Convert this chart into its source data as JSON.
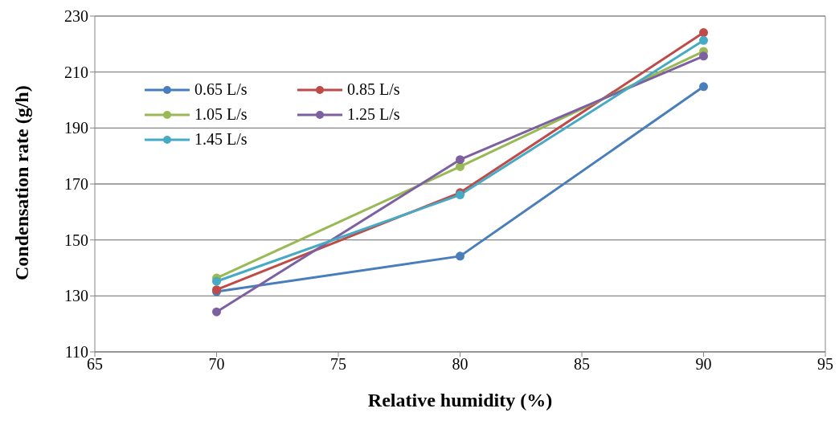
{
  "chart_data": {
    "type": "line",
    "xlabel": "Relative humidity (%)",
    "ylabel": "Condensation rate (g/h)",
    "x": [
      70,
      80,
      90
    ],
    "series": [
      {
        "name": "0.65 L/s",
        "color": "#4a7ebb",
        "values": [
          131.5,
          144.2,
          204.8
        ]
      },
      {
        "name": "0.85 L/s",
        "color": "#be4b48",
        "values": [
          132.2,
          166.9,
          224.1
        ]
      },
      {
        "name": "1.05 L/s",
        "color": "#98b954",
        "values": [
          136.4,
          176.2,
          217.4
        ]
      },
      {
        "name": "1.25 L/s",
        "color": "#7d60a0",
        "values": [
          124.3,
          178.7,
          215.7
        ]
      },
      {
        "name": "1.45 L/s",
        "color": "#46aac5",
        "values": [
          135.2,
          166.1,
          221.3
        ]
      }
    ],
    "xlim": [
      65,
      95
    ],
    "xticks": [
      65,
      70,
      75,
      80,
      85,
      90,
      95
    ],
    "ylim": [
      110,
      230
    ],
    "yticks": [
      110,
      130,
      150,
      170,
      190,
      210,
      230
    ],
    "grid": "y",
    "legend": "top left",
    "marker": "circle",
    "line_style": "solid"
  }
}
